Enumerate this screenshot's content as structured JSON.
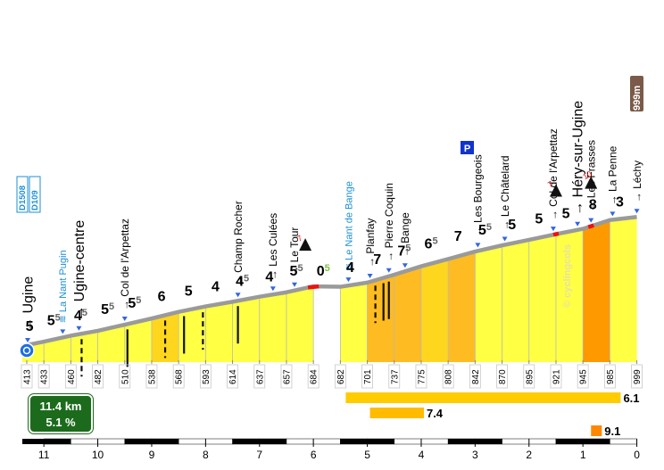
{
  "summary": {
    "distance": "11.4 km",
    "avg_gradient": "5.1 %"
  },
  "watermark": "© cyclingcols",
  "chart_data": {
    "type": "area",
    "title": "",
    "xlabel": "",
    "ylabel": "",
    "x_axis_reversed": true,
    "xlim": [
      11.4,
      0
    ],
    "ylim": [
      380,
      1010
    ],
    "km_ticks": [
      11,
      10,
      9,
      8,
      7,
      6,
      5,
      4,
      3,
      2,
      1,
      0
    ],
    "altitudes": [
      413,
      433,
      460,
      482,
      510,
      538,
      568,
      593,
      614,
      637,
      657,
      684,
      682,
      701,
      737,
      775,
      808,
      842,
      870,
      895,
      921,
      945,
      985,
      999
    ],
    "segments": [
      {
        "from_km": 11.4,
        "to_km": 11.0,
        "from_alt": 413,
        "to_alt": 433,
        "gradient": "5",
        "color": "#ffff44"
      },
      {
        "from_km": 11.0,
        "to_km": 10.5,
        "from_alt": 433,
        "to_alt": 460,
        "gradient": "55",
        "color": "#ffff44"
      },
      {
        "from_km": 10.5,
        "to_km": 10.0,
        "from_alt": 460,
        "to_alt": 482,
        "gradient": "45",
        "color": "#ffff44"
      },
      {
        "from_km": 10.0,
        "to_km": 9.5,
        "from_alt": 482,
        "to_alt": 510,
        "gradient": "55",
        "color": "#ffff44"
      },
      {
        "from_km": 9.5,
        "to_km": 9.0,
        "from_alt": 510,
        "to_alt": 538,
        "gradient": "55",
        "color": "#ffff44"
      },
      {
        "from_km": 9.0,
        "to_km": 8.5,
        "from_alt": 538,
        "to_alt": 568,
        "gradient": "6",
        "color": "#ffd61e"
      },
      {
        "from_km": 8.5,
        "to_km": 8.0,
        "from_alt": 568,
        "to_alt": 593,
        "gradient": "5",
        "color": "#ffff44"
      },
      {
        "from_km": 8.0,
        "to_km": 7.5,
        "from_alt": 593,
        "to_alt": 614,
        "gradient": "4",
        "color": "#ffff44"
      },
      {
        "from_km": 7.5,
        "to_km": 7.0,
        "from_alt": 614,
        "to_alt": 637,
        "gradient": "45",
        "color": "#ffff44"
      },
      {
        "from_km": 7.0,
        "to_km": 6.5,
        "from_alt": 637,
        "to_alt": 657,
        "gradient": "4",
        "color": "#ffff44"
      },
      {
        "from_km": 6.5,
        "to_km": 6.0,
        "from_alt": 657,
        "to_alt": 684,
        "gradient": "55",
        "color": "#ffff44"
      },
      {
        "from_km": 6.0,
        "to_km": 5.5,
        "from_alt": 684,
        "to_alt": 682,
        "gradient": "05",
        "color": "#ffffff"
      },
      {
        "from_km": 5.5,
        "to_km": 5.0,
        "from_alt": 682,
        "to_alt": 701,
        "gradient": "4",
        "color": "#ffff44"
      },
      {
        "from_km": 5.0,
        "to_km": 4.5,
        "from_alt": 701,
        "to_alt": 737,
        "gradient": "7",
        "color": "#ffbb22"
      },
      {
        "from_km": 4.5,
        "to_km": 4.0,
        "from_alt": 737,
        "to_alt": 775,
        "gradient": "75",
        "color": "#ffbb22"
      },
      {
        "from_km": 4.0,
        "to_km": 3.5,
        "from_alt": 775,
        "to_alt": 808,
        "gradient": "65",
        "color": "#ffd61e"
      },
      {
        "from_km": 3.5,
        "to_km": 3.0,
        "from_alt": 808,
        "to_alt": 842,
        "gradient": "7",
        "color": "#ffbb22"
      },
      {
        "from_km": 3.0,
        "to_km": 2.5,
        "from_alt": 842,
        "to_alt": 870,
        "gradient": "55",
        "color": "#ffff44"
      },
      {
        "from_km": 2.5,
        "to_km": 2.0,
        "from_alt": 870,
        "to_alt": 895,
        "gradient": "5",
        "color": "#ffff44"
      },
      {
        "from_km": 2.0,
        "to_km": 1.5,
        "from_alt": 895,
        "to_alt": 921,
        "gradient": "5",
        "color": "#ffff44"
      },
      {
        "from_km": 1.5,
        "to_km": 1.0,
        "from_alt": 921,
        "to_alt": 945,
        "gradient": "5",
        "color": "#ffff44"
      },
      {
        "from_km": 1.0,
        "to_km": 0.5,
        "from_alt": 945,
        "to_alt": 985,
        "gradient": "8",
        "color": "#ff9900"
      },
      {
        "from_km": 0.5,
        "to_km": 0.0,
        "from_alt": 985,
        "to_alt": 999,
        "gradient": "3",
        "color": "#ffff44"
      }
    ],
    "places": [
      {
        "name": "Ugine",
        "km": 11.4,
        "size": "big",
        "blue": false
      },
      {
        "name": "La Nant Pugin",
        "km": 10.65,
        "size": "small",
        "blue": true
      },
      {
        "name": "Ugine-centre",
        "km": 10.35,
        "size": "big",
        "blue": false
      },
      {
        "name": "Col de l'Arpettaz",
        "km": 9.5,
        "size": "normal",
        "blue": false
      },
      {
        "name": "Champ Rocher",
        "km": 7.4,
        "size": "normal",
        "blue": false
      },
      {
        "name": "Les Culées",
        "km": 6.75,
        "size": "normal",
        "blue": false
      },
      {
        "name": "Le Tour",
        "km": 6.35,
        "size": "normal",
        "blue": false
      },
      {
        "name": "Le Nant de Bange",
        "km": 5.35,
        "size": "small",
        "blue": true
      },
      {
        "name": "Planfay",
        "km": 4.95,
        "size": "normal",
        "blue": false
      },
      {
        "name": "Pierre Coquin",
        "km": 4.6,
        "size": "normal",
        "blue": false
      },
      {
        "name": "Bange",
        "km": 4.3,
        "size": "normal",
        "blue": false
      },
      {
        "name": "Les Bourgeois",
        "km": 2.95,
        "size": "normal",
        "blue": false
      },
      {
        "name": "Le Châtelard",
        "km": 2.45,
        "size": "normal",
        "blue": false
      },
      {
        "name": "Col de l'Arpettaz",
        "km": 1.55,
        "size": "normal",
        "blue": false
      },
      {
        "name": "Héry-sur-Ugine",
        "km": 1.1,
        "size": "big",
        "blue": false
      },
      {
        "name": "Les Frasses",
        "km": 0.85,
        "size": "normal",
        "blue": false
      },
      {
        "name": "La Penne",
        "km": 0.45,
        "size": "normal",
        "blue": false
      },
      {
        "name": "Léchy",
        "km": 0.0,
        "size": "normal",
        "blue": false
      }
    ],
    "road_badges": [
      "D1508",
      "D109"
    ],
    "summit_badge": "999m",
    "parking_label": "P",
    "steep_markers": [
      {
        "km": 6.15,
        "value": "7"
      },
      {
        "km": 1.5,
        "value": "7"
      },
      {
        "km": 0.85,
        "value": "10"
      }
    ],
    "bars": [
      {
        "from_km": 5.4,
        "to_km": 0.3,
        "label": "6.1"
      },
      {
        "from_km": 4.95,
        "to_km": 3.95,
        "label": "7.4"
      },
      {
        "from_km": 0.85,
        "to_km": 0.65,
        "label": "9.1"
      }
    ]
  }
}
